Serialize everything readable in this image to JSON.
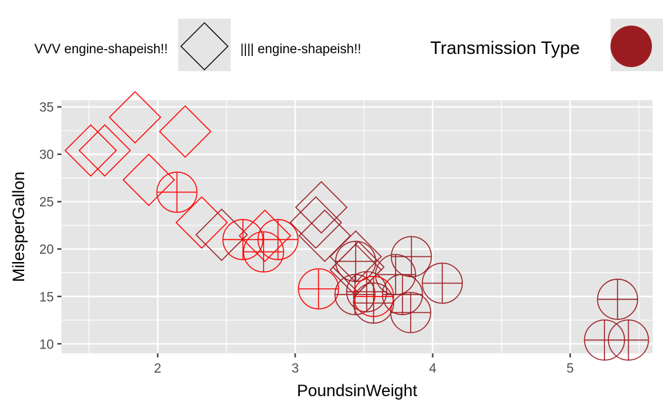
{
  "chart_data": {
    "type": "scatter",
    "title": "",
    "xlabel": "PoundsinWeight",
    "ylabel": "MilesperGallon",
    "xlim": [
      1.3,
      5.6
    ],
    "ylim": [
      9,
      35.7
    ],
    "x_ticks": [
      2,
      3,
      4,
      5
    ],
    "y_ticks": [
      10,
      15,
      20,
      25,
      30,
      35
    ],
    "grid": true,
    "legend_position": "top",
    "colors": {
      "manual": "#ff0000",
      "automatic": "#9b1c20",
      "panel": "#e5e5e5",
      "grid": "#ffffff"
    },
    "legends": [
      {
        "entries": [
          "VVV engine-shapeish!!",
          "|||| engine-shapeish!!"
        ],
        "key_shape": "diamond"
      },
      {
        "title": "Transmission Type",
        "key_shape": "filled-circle"
      }
    ],
    "points": [
      {
        "x": 2.62,
        "y": 21.0,
        "shape": "circle",
        "color": "manual"
      },
      {
        "x": 2.875,
        "y": 21.0,
        "shape": "circle",
        "color": "manual"
      },
      {
        "x": 2.32,
        "y": 22.8,
        "shape": "diamond",
        "color": "manual"
      },
      {
        "x": 3.215,
        "y": 21.4,
        "shape": "diamond",
        "color": "automatic"
      },
      {
        "x": 3.44,
        "y": 18.7,
        "shape": "circle",
        "color": "automatic"
      },
      {
        "x": 3.46,
        "y": 18.1,
        "shape": "diamond",
        "color": "automatic"
      },
      {
        "x": 3.57,
        "y": 14.3,
        "shape": "circle",
        "color": "automatic"
      },
      {
        "x": 3.19,
        "y": 24.4,
        "shape": "diamond",
        "color": "automatic"
      },
      {
        "x": 3.15,
        "y": 22.8,
        "shape": "diamond",
        "color": "automatic"
      },
      {
        "x": 3.44,
        "y": 19.2,
        "shape": "diamond",
        "color": "automatic"
      },
      {
        "x": 3.44,
        "y": 17.8,
        "shape": "diamond",
        "color": "automatic"
      },
      {
        "x": 4.07,
        "y": 16.4,
        "shape": "circle",
        "color": "automatic"
      },
      {
        "x": 3.73,
        "y": 17.3,
        "shape": "circle",
        "color": "automatic"
      },
      {
        "x": 3.78,
        "y": 15.2,
        "shape": "circle",
        "color": "automatic"
      },
      {
        "x": 5.25,
        "y": 10.4,
        "shape": "circle",
        "color": "automatic"
      },
      {
        "x": 5.424,
        "y": 10.4,
        "shape": "circle",
        "color": "automatic"
      },
      {
        "x": 5.345,
        "y": 14.7,
        "shape": "circle",
        "color": "automatic"
      },
      {
        "x": 2.2,
        "y": 32.4,
        "shape": "diamond",
        "color": "manual"
      },
      {
        "x": 1.615,
        "y": 30.4,
        "shape": "diamond",
        "color": "manual"
      },
      {
        "x": 1.835,
        "y": 33.9,
        "shape": "diamond",
        "color": "manual"
      },
      {
        "x": 2.465,
        "y": 21.5,
        "shape": "diamond",
        "color": "automatic"
      },
      {
        "x": 3.52,
        "y": 15.5,
        "shape": "circle",
        "color": "automatic"
      },
      {
        "x": 3.435,
        "y": 15.2,
        "shape": "circle",
        "color": "automatic"
      },
      {
        "x": 3.84,
        "y": 13.3,
        "shape": "circle",
        "color": "automatic"
      },
      {
        "x": 3.845,
        "y": 19.2,
        "shape": "circle",
        "color": "automatic"
      },
      {
        "x": 1.935,
        "y": 27.3,
        "shape": "diamond",
        "color": "manual"
      },
      {
        "x": 2.14,
        "y": 26.0,
        "shape": "circle",
        "color": "manual"
      },
      {
        "x": 1.513,
        "y": 30.4,
        "shape": "diamond",
        "color": "manual"
      },
      {
        "x": 3.17,
        "y": 15.8,
        "shape": "circle",
        "color": "manual"
      },
      {
        "x": 2.77,
        "y": 19.7,
        "shape": "circle",
        "color": "manual"
      },
      {
        "x": 3.57,
        "y": 15.0,
        "shape": "circle",
        "color": "manual"
      },
      {
        "x": 2.78,
        "y": 21.4,
        "shape": "diamond",
        "color": "manual"
      }
    ]
  }
}
